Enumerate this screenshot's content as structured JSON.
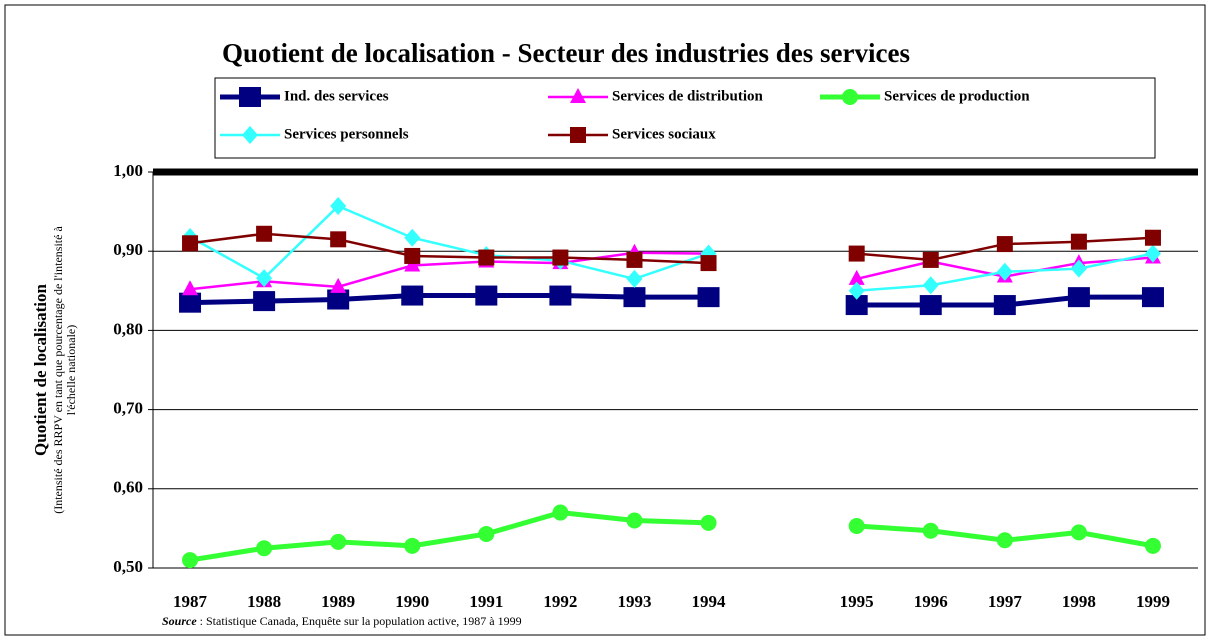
{
  "chart_data": {
    "type": "line",
    "title": "Quotient de localisation - Secteur des industries des services",
    "y_label": "Quotient de localisation",
    "y_label_note": [
      "(Intensité des RRPV en tant que pourcentage de l'intensité à",
      "l'échelle nationale)"
    ],
    "source_label": "Source",
    "source_text": " : Statistique Canada, Enquête sur la population active, 1987 à 1999",
    "categories": [
      "1987",
      "1988",
      "1989",
      "1990",
      "1991",
      "1992",
      "1993",
      "1994",
      null,
      "1995",
      "1996",
      "1997",
      "1998",
      "1999"
    ],
    "ylim": [
      0.5,
      1.0
    ],
    "yticks": [
      {
        "value": 0.5,
        "label": "0,50"
      },
      {
        "value": 0.6,
        "label": "0,60"
      },
      {
        "value": 0.7,
        "label": "0,70"
      },
      {
        "value": 0.8,
        "label": "0,80"
      },
      {
        "value": 0.9,
        "label": "0,90"
      },
      {
        "value": 1.0,
        "label": "1,00"
      }
    ],
    "grid": true,
    "series": [
      {
        "name": "Ind. des services",
        "color": "#000080",
        "marker": "square",
        "values": [
          0.835,
          0.837,
          0.839,
          0.844,
          0.844,
          0.844,
          0.842,
          0.842,
          null,
          0.832,
          0.832,
          0.832,
          0.842,
          0.842
        ]
      },
      {
        "name": "Services de distribution",
        "color": "#ff00ff",
        "marker": "triangle",
        "values": [
          0.852,
          0.862,
          0.855,
          0.882,
          0.887,
          0.885,
          0.898,
          0.897,
          null,
          0.865,
          0.887,
          0.868,
          0.885,
          0.892
        ]
      },
      {
        "name": "Services de production",
        "color": "#33ff33",
        "marker": "circle",
        "values": [
          0.51,
          0.525,
          0.533,
          0.528,
          0.543,
          0.57,
          0.56,
          0.557,
          null,
          0.553,
          0.547,
          0.535,
          0.545,
          0.528
        ]
      },
      {
        "name": "Services personnels",
        "color": "#33ffff",
        "marker": "diamond",
        "values": [
          0.918,
          0.866,
          0.957,
          0.917,
          0.895,
          0.888,
          0.865,
          0.897,
          null,
          0.85,
          0.857,
          0.874,
          0.878,
          0.897
        ]
      },
      {
        "name": "Services sociaux",
        "color": "#800000",
        "marker": "square-small",
        "values": [
          0.91,
          0.922,
          0.915,
          0.894,
          0.892,
          0.892,
          0.889,
          0.885,
          null,
          0.897,
          0.889,
          0.909,
          0.912,
          0.917
        ]
      }
    ]
  }
}
